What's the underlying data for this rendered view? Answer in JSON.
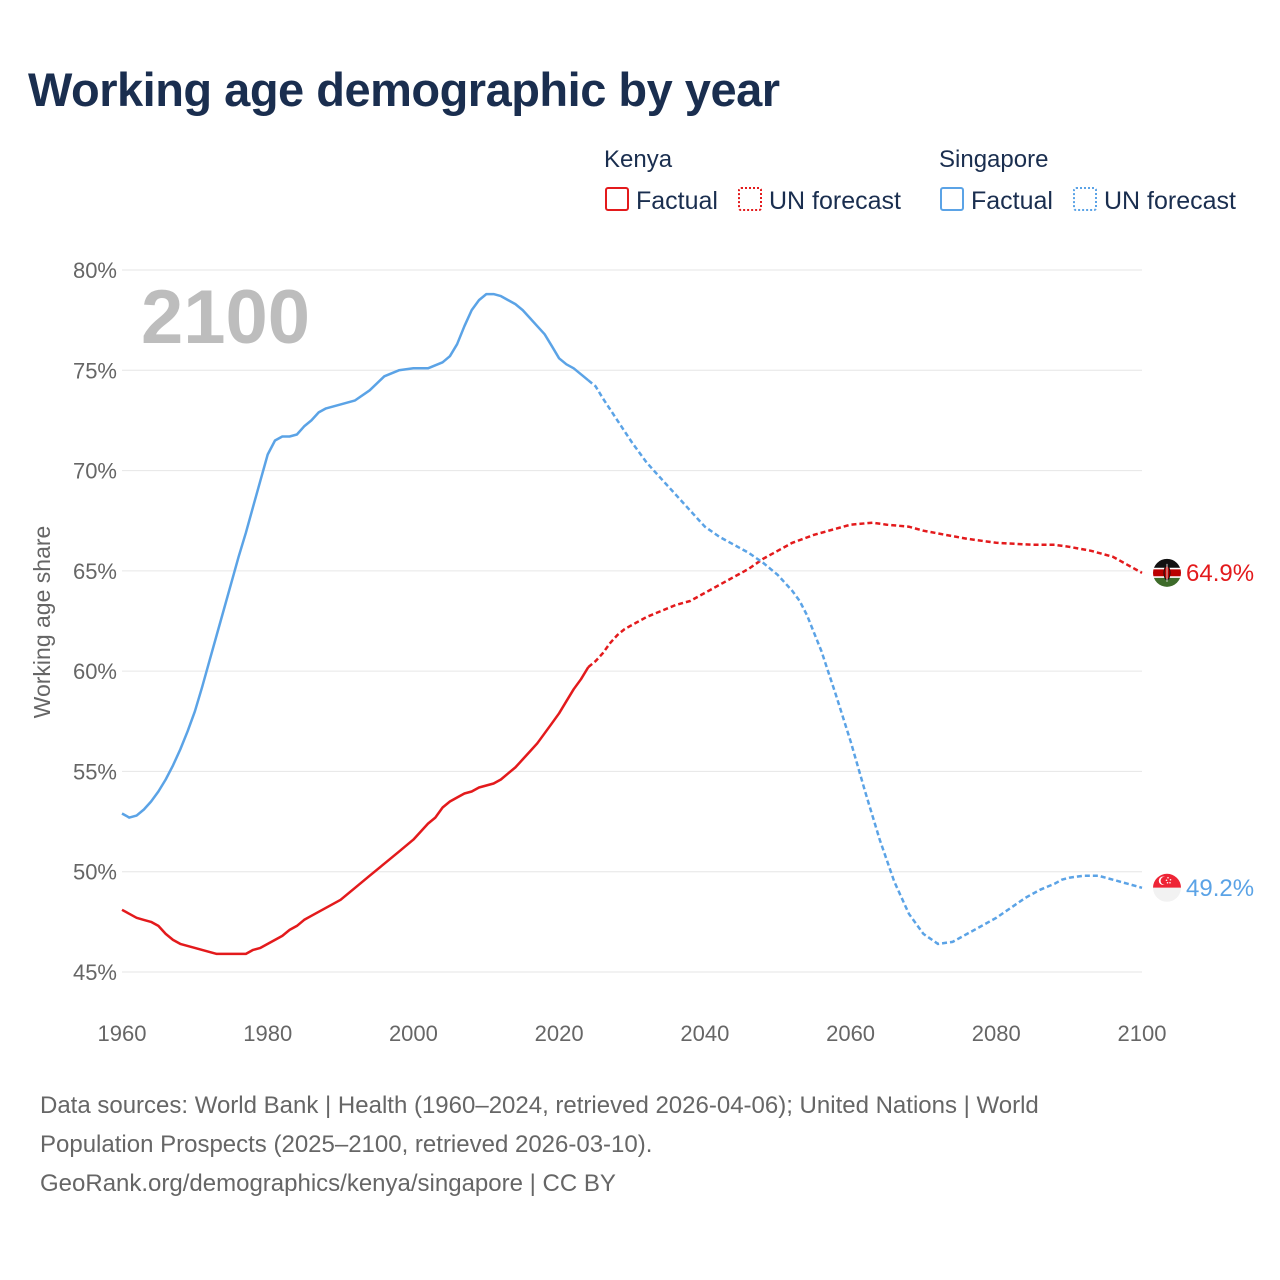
{
  "title": "Working age demographic by year",
  "year_label": "2100",
  "y_axis_title": "Working age share",
  "legend": {
    "groups": [
      {
        "country": "Kenya",
        "color": "#e31a1c",
        "factual_label": "Factual",
        "forecast_label": "UN forecast"
      },
      {
        "country": "Singapore",
        "color": "#5ba3e6",
        "factual_label": "Factual",
        "forecast_label": "UN forecast"
      }
    ]
  },
  "sources": [
    "Data sources: World Bank | Health (1960–2024, retrieved 2026-04-06); United Nations | World",
    "Population Prospects (2025–2100, retrieved 2026-03-10).",
    "GeoRank.org/demographics/kenya/singapore | CC BY"
  ],
  "chart_data": {
    "type": "line",
    "title": "Working age demographic by year",
    "xlabel": "",
    "ylabel": "Working age share",
    "xlim": [
      1960,
      2100
    ],
    "ylim": [
      45,
      80
    ],
    "x_ticks": [
      1960,
      1980,
      2000,
      2020,
      2040,
      2060,
      2080,
      2100
    ],
    "x_tick_labels": [
      "1960",
      "1980",
      "2000",
      "2020",
      "2040",
      "2060",
      "2080",
      "2100"
    ],
    "y_ticks": [
      45,
      50,
      55,
      60,
      65,
      70,
      75,
      80
    ],
    "y_tick_labels": [
      "45%",
      "50%",
      "55%",
      "60%",
      "65%",
      "70%",
      "75%",
      "80%"
    ],
    "grid": true,
    "factual_end_year": 2024,
    "series": [
      {
        "name": "Kenya",
        "color": "#e31a1c",
        "end_label": "64.9%",
        "points": [
          [
            1960,
            48.1
          ],
          [
            1961,
            47.9
          ],
          [
            1962,
            47.7
          ],
          [
            1963,
            47.6
          ],
          [
            1964,
            47.5
          ],
          [
            1965,
            47.3
          ],
          [
            1966,
            46.9
          ],
          [
            1967,
            46.6
          ],
          [
            1968,
            46.4
          ],
          [
            1970,
            46.2
          ],
          [
            1972,
            46.0
          ],
          [
            1973,
            45.9
          ],
          [
            1974,
            45.9
          ],
          [
            1976,
            45.9
          ],
          [
            1977,
            45.9
          ],
          [
            1978,
            46.1
          ],
          [
            1979,
            46.2
          ],
          [
            1980,
            46.4
          ],
          [
            1982,
            46.8
          ],
          [
            1983,
            47.1
          ],
          [
            1984,
            47.3
          ],
          [
            1985,
            47.6
          ],
          [
            1986,
            47.8
          ],
          [
            1988,
            48.2
          ],
          [
            1990,
            48.6
          ],
          [
            1992,
            49.2
          ],
          [
            1994,
            49.8
          ],
          [
            1996,
            50.4
          ],
          [
            1998,
            51.0
          ],
          [
            2000,
            51.6
          ],
          [
            2002,
            52.4
          ],
          [
            2003,
            52.7
          ],
          [
            2004,
            53.2
          ],
          [
            2005,
            53.5
          ],
          [
            2006,
            53.7
          ],
          [
            2007,
            53.9
          ],
          [
            2008,
            54.0
          ],
          [
            2009,
            54.2
          ],
          [
            2010,
            54.3
          ],
          [
            2011,
            54.4
          ],
          [
            2012,
            54.6
          ],
          [
            2013,
            54.9
          ],
          [
            2014,
            55.2
          ],
          [
            2015,
            55.6
          ],
          [
            2016,
            56.0
          ],
          [
            2017,
            56.4
          ],
          [
            2018,
            56.9
          ],
          [
            2019,
            57.4
          ],
          [
            2020,
            57.9
          ],
          [
            2021,
            58.5
          ],
          [
            2022,
            59.1
          ],
          [
            2023,
            59.6
          ],
          [
            2024,
            60.2
          ],
          [
            2025,
            60.5
          ],
          [
            2026,
            60.9
          ],
          [
            2027,
            61.4
          ],
          [
            2028,
            61.8
          ],
          [
            2029,
            62.1
          ],
          [
            2030,
            62.3
          ],
          [
            2032,
            62.7
          ],
          [
            2034,
            63.0
          ],
          [
            2036,
            63.3
          ],
          [
            2038,
            63.5
          ],
          [
            2040,
            63.9
          ],
          [
            2042,
            64.3
          ],
          [
            2044,
            64.7
          ],
          [
            2046,
            65.1
          ],
          [
            2048,
            65.6
          ],
          [
            2050,
            66.0
          ],
          [
            2052,
            66.4
          ],
          [
            2055,
            66.8
          ],
          [
            2058,
            67.1
          ],
          [
            2060,
            67.3
          ],
          [
            2063,
            67.4
          ],
          [
            2065,
            67.3
          ],
          [
            2068,
            67.2
          ],
          [
            2070,
            67.0
          ],
          [
            2073,
            66.8
          ],
          [
            2076,
            66.6
          ],
          [
            2080,
            66.4
          ],
          [
            2085,
            66.3
          ],
          [
            2088,
            66.3
          ],
          [
            2090,
            66.2
          ],
          [
            2093,
            66.0
          ],
          [
            2096,
            65.7
          ],
          [
            2098,
            65.3
          ],
          [
            2100,
            64.9
          ]
        ]
      },
      {
        "name": "Singapore",
        "color": "#5ba3e6",
        "end_label": "49.2%",
        "points": [
          [
            1960,
            52.9
          ],
          [
            1961,
            52.7
          ],
          [
            1962,
            52.8
          ],
          [
            1963,
            53.1
          ],
          [
            1964,
            53.5
          ],
          [
            1965,
            54.0
          ],
          [
            1966,
            54.6
          ],
          [
            1967,
            55.3
          ],
          [
            1968,
            56.1
          ],
          [
            1969,
            57.0
          ],
          [
            1970,
            58.0
          ],
          [
            1971,
            59.2
          ],
          [
            1972,
            60.5
          ],
          [
            1973,
            61.8
          ],
          [
            1974,
            63.1
          ],
          [
            1975,
            64.4
          ],
          [
            1976,
            65.7
          ],
          [
            1977,
            66.9
          ],
          [
            1978,
            68.2
          ],
          [
            1979,
            69.5
          ],
          [
            1980,
            70.8
          ],
          [
            1981,
            71.5
          ],
          [
            1982,
            71.7
          ],
          [
            1983,
            71.7
          ],
          [
            1984,
            71.8
          ],
          [
            1985,
            72.2
          ],
          [
            1986,
            72.5
          ],
          [
            1987,
            72.9
          ],
          [
            1988,
            73.1
          ],
          [
            1990,
            73.3
          ],
          [
            1992,
            73.5
          ],
          [
            1994,
            74.0
          ],
          [
            1996,
            74.7
          ],
          [
            1998,
            75.0
          ],
          [
            2000,
            75.1
          ],
          [
            2002,
            75.1
          ],
          [
            2004,
            75.4
          ],
          [
            2005,
            75.7
          ],
          [
            2006,
            76.3
          ],
          [
            2007,
            77.2
          ],
          [
            2008,
            78.0
          ],
          [
            2009,
            78.5
          ],
          [
            2010,
            78.8
          ],
          [
            2011,
            78.8
          ],
          [
            2012,
            78.7
          ],
          [
            2013,
            78.5
          ],
          [
            2014,
            78.3
          ],
          [
            2015,
            78.0
          ],
          [
            2016,
            77.6
          ],
          [
            2017,
            77.2
          ],
          [
            2018,
            76.8
          ],
          [
            2019,
            76.2
          ],
          [
            2020,
            75.6
          ],
          [
            2021,
            75.3
          ],
          [
            2022,
            75.1
          ],
          [
            2023,
            74.8
          ],
          [
            2024,
            74.5
          ],
          [
            2025,
            74.2
          ],
          [
            2026,
            73.6
          ],
          [
            2028,
            72.5
          ],
          [
            2030,
            71.4
          ],
          [
            2032,
            70.4
          ],
          [
            2034,
            69.6
          ],
          [
            2036,
            68.8
          ],
          [
            2038,
            68.0
          ],
          [
            2040,
            67.2
          ],
          [
            2042,
            66.7
          ],
          [
            2044,
            66.3
          ],
          [
            2046,
            65.9
          ],
          [
            2048,
            65.4
          ],
          [
            2050,
            64.8
          ],
          [
            2052,
            64.0
          ],
          [
            2053,
            63.5
          ],
          [
            2054,
            62.8
          ],
          [
            2056,
            61.0
          ],
          [
            2058,
            58.8
          ],
          [
            2060,
            56.5
          ],
          [
            2062,
            54.0
          ],
          [
            2064,
            51.6
          ],
          [
            2066,
            49.5
          ],
          [
            2068,
            47.9
          ],
          [
            2070,
            46.9
          ],
          [
            2072,
            46.4
          ],
          [
            2074,
            46.5
          ],
          [
            2076,
            46.9
          ],
          [
            2078,
            47.3
          ],
          [
            2080,
            47.7
          ],
          [
            2082,
            48.2
          ],
          [
            2084,
            48.7
          ],
          [
            2086,
            49.1
          ],
          [
            2088,
            49.4
          ],
          [
            2089,
            49.6
          ],
          [
            2090,
            49.7
          ],
          [
            2092,
            49.8
          ],
          [
            2094,
            49.8
          ],
          [
            2096,
            49.6
          ],
          [
            2098,
            49.4
          ],
          [
            2100,
            49.2
          ]
        ]
      }
    ]
  }
}
